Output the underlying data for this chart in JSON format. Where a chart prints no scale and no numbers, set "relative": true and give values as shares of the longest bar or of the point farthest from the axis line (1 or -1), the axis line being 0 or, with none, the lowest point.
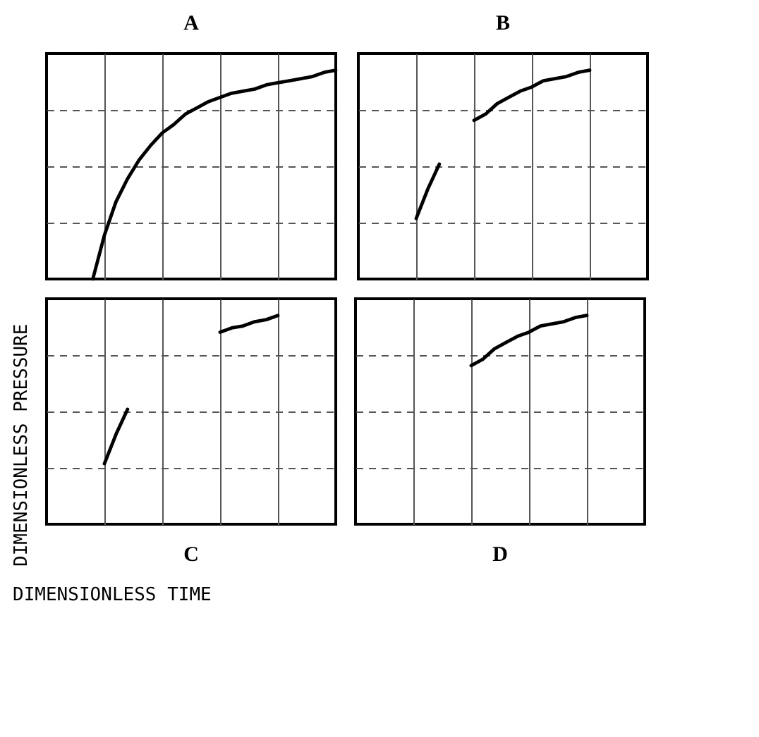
{
  "chart_data": [
    {
      "type": "line",
      "title": "A",
      "ylabel": "DIMENSIONLESS PRESSURE",
      "xlabel": "DIMENSIONLESS TIME",
      "relative": true,
      "grid": true,
      "marker": "none",
      "line_style": "solid",
      "categories": [
        null,
        null,
        null,
        null,
        null,
        null,
        null,
        null,
        null,
        null,
        null,
        null,
        null,
        null,
        null,
        null,
        null,
        null,
        null,
        null,
        null,
        null,
        null,
        null,
        null,
        null
      ],
      "series": [
        {
          "color": "#000000",
          "values": [
            null,
            null,
            null,
            null,
            0,
            0.21,
            0.37,
            0.48,
            0.57,
            0.64,
            0.7,
            0.74,
            0.79,
            0.82,
            0.85,
            0.87,
            0.89,
            0.9,
            0.91,
            0.93,
            0.94,
            0.95,
            0.96,
            0.97,
            0.99,
            1
          ]
        }
      ]
    },
    {
      "type": "line",
      "title": "B",
      "relative": true,
      "grid": true,
      "marker": "none",
      "line_style": "solid",
      "categories": [
        null,
        null,
        null,
        null,
        null,
        null,
        null,
        null,
        null,
        null,
        null,
        null,
        null,
        null,
        null,
        null,
        null,
        null,
        null,
        null,
        null,
        null,
        null,
        null,
        null,
        null
      ],
      "series": [
        {
          "color": "#000000",
          "values": [
            null,
            null,
            null,
            null,
            null,
            0.29,
            0.43,
            0.55,
            null,
            null,
            null,
            null,
            null,
            null,
            null,
            null,
            null,
            null,
            null,
            null,
            null,
            null,
            null,
            null,
            null,
            null
          ]
        },
        {
          "color": "#000000",
          "values": [
            null,
            null,
            null,
            null,
            null,
            null,
            null,
            null,
            null,
            null,
            0.76,
            0.79,
            0.84,
            0.87,
            0.9,
            0.92,
            0.95,
            0.96,
            0.97,
            0.99,
            1,
            null,
            null,
            null,
            null,
            null
          ]
        }
      ]
    },
    {
      "type": "line",
      "title": "C",
      "relative": true,
      "grid": true,
      "marker": "none",
      "line_style": "solid",
      "categories": [
        null,
        null,
        null,
        null,
        null,
        null,
        null,
        null,
        null,
        null,
        null,
        null,
        null,
        null,
        null,
        null,
        null,
        null,
        null,
        null,
        null,
        null,
        null,
        null,
        null,
        null
      ],
      "series": [
        {
          "color": "#000000",
          "values": [
            null,
            null,
            null,
            null,
            null,
            0.29,
            0.43,
            0.55,
            null,
            null,
            null,
            null,
            null,
            null,
            null,
            null,
            null,
            null,
            null,
            null,
            null,
            null,
            null,
            null,
            null,
            null
          ]
        },
        {
          "color": "#000000",
          "values": [
            null,
            null,
            null,
            null,
            null,
            null,
            null,
            null,
            null,
            null,
            null,
            null,
            null,
            null,
            null,
            0.92,
            0.94,
            0.95,
            0.97,
            0.98,
            1,
            null,
            null,
            null,
            null,
            null
          ]
        }
      ]
    },
    {
      "type": "line",
      "title": "D",
      "relative": true,
      "grid": true,
      "marker": "none",
      "line_style": "solid",
      "categories": [
        null,
        null,
        null,
        null,
        null,
        null,
        null,
        null,
        null,
        null,
        null,
        null,
        null,
        null,
        null,
        null,
        null,
        null,
        null,
        null,
        null,
        null,
        null,
        null,
        null,
        null
      ],
      "series": [
        {
          "color": "#000000",
          "values": [
            null,
            null,
            null,
            null,
            null,
            null,
            null,
            null,
            null,
            null,
            0.76,
            0.79,
            0.84,
            0.87,
            0.9,
            0.92,
            0.95,
            0.96,
            0.97,
            0.99,
            1,
            null,
            null,
            null,
            null,
            null
          ]
        }
      ]
    }
  ]
}
